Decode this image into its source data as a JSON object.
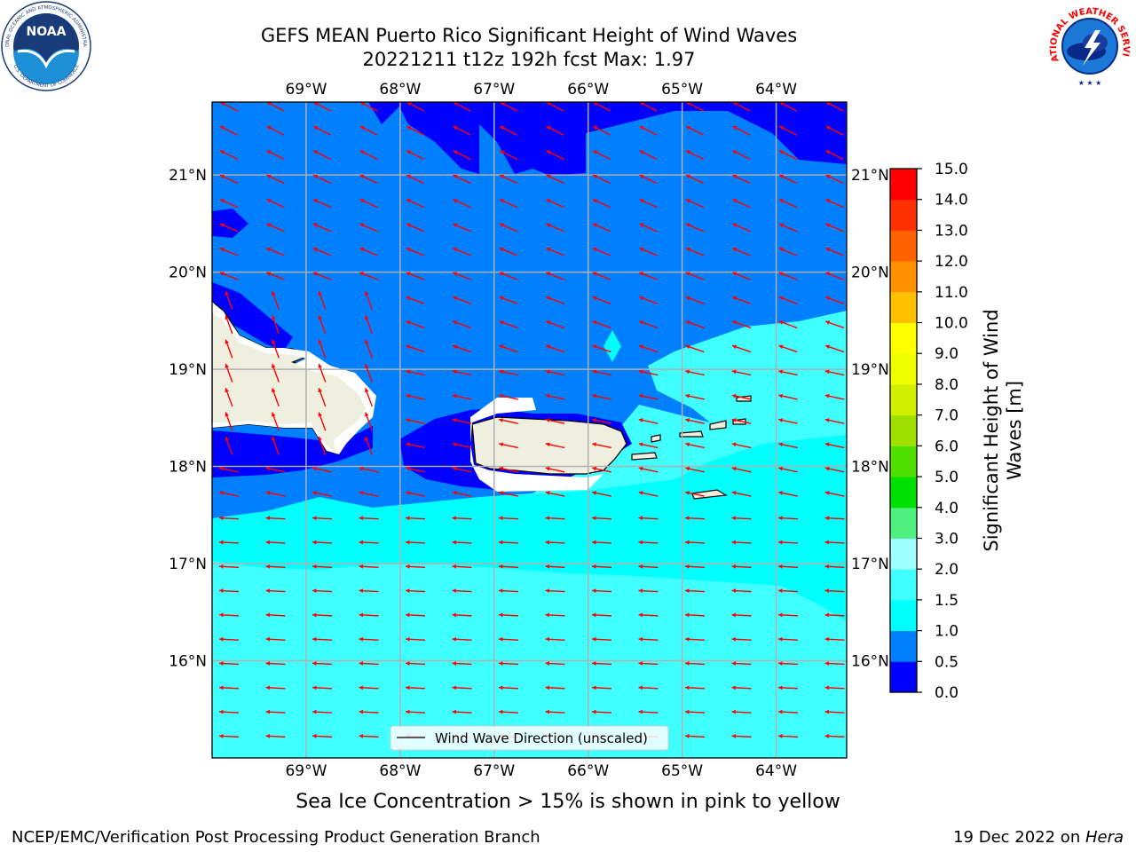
{
  "header": {
    "title_line1": "GEFS MEAN Puerto Rico Significant Height of Wind Waves",
    "title_line2": "20221211 t12z 192h fcst   Max: 1.97"
  },
  "footer": {
    "left": "NCEP/EMC/Verification Post Processing Product Generation Branch",
    "right_date": "19 Dec 2022 on ",
    "right_host": "Hera"
  },
  "note": "Sea Ice Concentration > 15% is shown in pink to yellow",
  "legend": {
    "label": "Wind Wave Direction (unscaled)"
  },
  "logos": {
    "noaa": {
      "text": "NOAA",
      "ring_top": "NATIONAL OCEANIC AND ATMOSPHERIC ADMINISTRATION",
      "ring_bottom": "U.S. DEPARTMENT OF COMMERCE"
    },
    "nws": {
      "ring": "NATIONAL WEATHER SERVICE"
    }
  },
  "map": {
    "lon_range": [
      -70.0,
      -63.25
    ],
    "lat_range": [
      15.0,
      21.75
    ],
    "lon_ticks": [
      {
        "value": -69,
        "label": "69°W"
      },
      {
        "value": -68,
        "label": "68°W"
      },
      {
        "value": -67,
        "label": "67°W"
      },
      {
        "value": -66,
        "label": "66°W"
      },
      {
        "value": -65,
        "label": "65°W"
      },
      {
        "value": -64,
        "label": "64°W"
      }
    ],
    "lat_ticks": [
      {
        "value": 16,
        "label": "16°N"
      },
      {
        "value": 17,
        "label": "17°N"
      },
      {
        "value": 18,
        "label": "18°N"
      },
      {
        "value": 19,
        "label": "19°N"
      },
      {
        "value": 20,
        "label": "20°N"
      },
      {
        "value": 21,
        "label": "21°N"
      }
    ],
    "arrow_color": "#ff0000",
    "land_color": "#efefdf",
    "gridlines": true
  },
  "colorbar": {
    "label_line1": "Significant Height of Wind",
    "label_line2": "Waves [m]",
    "levels": [
      0.0,
      0.5,
      1.0,
      1.5,
      2.0,
      3.0,
      4.0,
      5.0,
      6.0,
      7.0,
      8.0,
      9.0,
      10.0,
      11.0,
      12.0,
      13.0,
      14.0,
      15.0
    ],
    "tick_labels": [
      "0.0",
      "0.5",
      "1.0",
      "1.5",
      "2.0",
      "3.0",
      "4.0",
      "5.0",
      "6.0",
      "7.0",
      "8.0",
      "9.0",
      "10.0",
      "11.0",
      "12.0",
      "13.0",
      "14.0",
      "15.0"
    ],
    "colors": [
      "#0000ff",
      "#0080ff",
      "#00ffff",
      "#40ffff",
      "#a0ffff",
      "#50f080",
      "#00e000",
      "#50e000",
      "#a0e000",
      "#d0f000",
      "#f0ff00",
      "#ffff00",
      "#ffc000",
      "#ff9000",
      "#ff6000",
      "#ff3000",
      "#ff0000"
    ]
  }
}
